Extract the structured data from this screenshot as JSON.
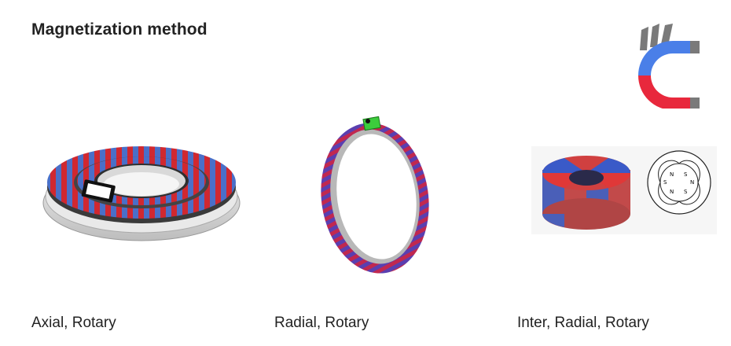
{
  "header": {
    "title": "Magnetization method"
  },
  "brand": {
    "logo_icon": "horseshoe-magnet-logo-icon",
    "colors": {
      "red": "#e8283c",
      "blue": "#4a7fe8",
      "gray": "#777777"
    }
  },
  "items": [
    {
      "caption": "Axial, Rotary",
      "image_icon": "axial-ring-magnet-icon"
    },
    {
      "caption": "Radial, Rotary",
      "image_icon": "radial-ring-magnet-icon"
    },
    {
      "caption": "Inter, Radial, Rotary",
      "image_icon": "inter-radial-ring-magnet-icon"
    }
  ],
  "diagram": {
    "pole_labels": [
      "N",
      "S",
      "N",
      "S",
      "N",
      "S"
    ]
  }
}
